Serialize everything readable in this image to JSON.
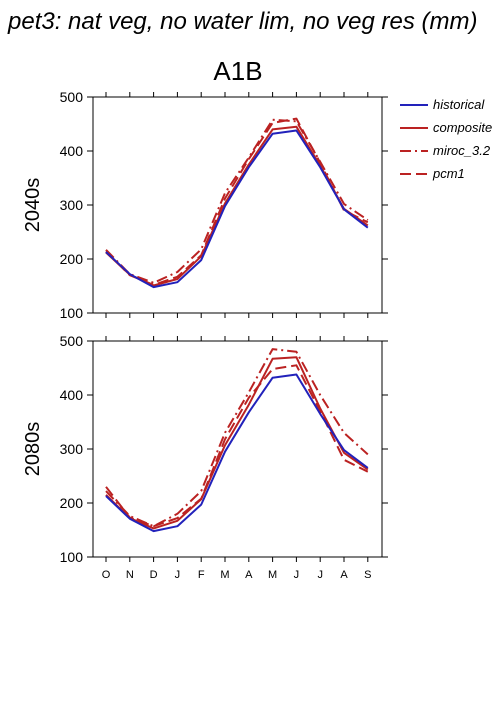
{
  "figure": {
    "title": "pet3: nat veg, no water lim, no veg res (mm)",
    "scenario": "A1B"
  },
  "legend": {
    "placement": "top-right",
    "entries": [
      {
        "name": "historical",
        "color": "#2222bb",
        "dash": "solid"
      },
      {
        "name": "composite",
        "color": "#bb2222",
        "dash": "solid"
      },
      {
        "name": "miroc_3.2",
        "color": "#bb2222",
        "dash": "dashdot"
      },
      {
        "name": "pcm1",
        "color": "#bb2222",
        "dash": "dash"
      }
    ]
  },
  "chart_data": [
    {
      "type": "line",
      "ylabel": "2040s",
      "categories": [
        "O",
        "N",
        "D",
        "J",
        "F",
        "M",
        "A",
        "M",
        "J",
        "J",
        "A",
        "S"
      ],
      "ylim": [
        100,
        500
      ],
      "yticks": [
        "100",
        "200",
        "300",
        "400",
        "500"
      ],
      "series": [
        {
          "name": "historical",
          "values": [
            213,
            172,
            148,
            157,
            198,
            298,
            370,
            432,
            438,
            370,
            292,
            258
          ]
        },
        {
          "name": "composite",
          "values": [
            212,
            171,
            151,
            163,
            205,
            303,
            375,
            440,
            445,
            373,
            293,
            262
          ]
        },
        {
          "name": "miroc_3.2",
          "values": [
            217,
            172,
            156,
            176,
            218,
            322,
            388,
            458,
            455,
            380,
            302,
            272
          ]
        },
        {
          "name": "pcm1",
          "values": [
            214,
            170,
            152,
            167,
            207,
            312,
            385,
            452,
            460,
            378,
            290,
            268
          ]
        }
      ]
    },
    {
      "type": "line",
      "ylabel": "2080s",
      "categories": [
        "O",
        "N",
        "D",
        "J",
        "F",
        "M",
        "A",
        "M",
        "J",
        "J",
        "A",
        "S"
      ],
      "ylim": [
        100,
        500
      ],
      "yticks": [
        "100",
        "200",
        "300",
        "400",
        "500"
      ],
      "series": [
        {
          "name": "historical",
          "values": [
            213,
            171,
            148,
            157,
            197,
            295,
            368,
            432,
            438,
            365,
            298,
            265
          ]
        },
        {
          "name": "composite",
          "values": [
            215,
            172,
            153,
            167,
            207,
            307,
            382,
            467,
            470,
            375,
            293,
            262
          ]
        },
        {
          "name": "miroc_3.2",
          "values": [
            222,
            176,
            157,
            180,
            222,
            330,
            405,
            485,
            480,
            400,
            330,
            290
          ]
        },
        {
          "name": "pcm1",
          "values": [
            230,
            173,
            157,
            172,
            208,
            318,
            395,
            448,
            455,
            370,
            280,
            258
          ]
        }
      ]
    }
  ]
}
